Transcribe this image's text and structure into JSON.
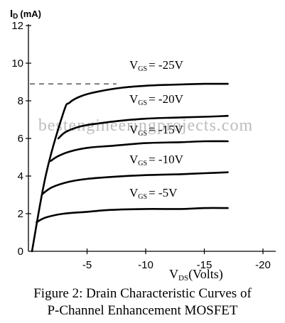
{
  "chart_data": {
    "type": "line",
    "ylabel": "I",
    "ylabel_sub": "D",
    "ylabel_unit": "(mA)",
    "xlabel": "V",
    "xlabel_sub": "DS",
    "xlabel_unit": "(Volts)",
    "xlim": [
      0,
      -20
    ],
    "ylim": [
      0,
      12
    ],
    "x_ticks": [
      -5,
      -10,
      -15,
      -20
    ],
    "x_tick_labels": [
      "-5",
      "-10",
      "-15",
      "-20"
    ],
    "y_ticks": [
      0,
      2,
      4,
      6,
      8,
      10,
      12
    ],
    "y_tick_labels": [
      "0",
      "2",
      "4",
      "6",
      "8",
      "10",
      "12"
    ],
    "grid": false,
    "reference_line": {
      "y": 8.9,
      "x_from": 0,
      "x_to": -7.5,
      "style": "dashed"
    },
    "watermark": "bestengineeringprojects.com",
    "series": [
      {
        "name": "V",
        "name_sub": "GS",
        "name_rest": "= -25V",
        "x": [
          -0.3,
          -1.5,
          -3.0,
          -3.5,
          -4.5,
          -6,
          -8,
          -10,
          -12,
          -15,
          -17
        ],
        "y": [
          0,
          4.1,
          7.4,
          7.9,
          8.25,
          8.5,
          8.7,
          8.8,
          8.85,
          8.9,
          8.9
        ]
      },
      {
        "name": "V",
        "name_sub": "GS",
        "name_rest": "= -20V",
        "x": [
          -2.55,
          -3.2,
          -4.5,
          -6,
          -8,
          -10,
          -12,
          -15,
          -17
        ],
        "y": [
          6.0,
          6.35,
          6.65,
          6.8,
          6.95,
          7.05,
          7.1,
          7.15,
          7.2
        ]
      },
      {
        "name": "V",
        "name_sub": "GS",
        "name_rest": "= -15V",
        "x": [
          -1.9,
          -2.5,
          -3.5,
          -5,
          -7,
          -10,
          -13,
          -15,
          -17
        ],
        "y": [
          4.8,
          5.05,
          5.3,
          5.5,
          5.6,
          5.75,
          5.8,
          5.85,
          5.85
        ]
      },
      {
        "name": "V",
        "name_sub": "GS",
        "name_rest": "= -10V",
        "x": [
          -1.2,
          -2,
          -3.5,
          -5,
          -7,
          -10,
          -13,
          -15,
          -17
        ],
        "y": [
          3.05,
          3.4,
          3.7,
          3.85,
          3.95,
          4.05,
          4.1,
          4.15,
          4.2
        ]
      },
      {
        "name": "V",
        "name_sub": "GS",
        "name_rest": "= -5V",
        "x": [
          -0.7,
          -1.5,
          -3,
          -5,
          -7,
          -10,
          -13,
          -15,
          -17
        ],
        "y": [
          1.55,
          1.8,
          2.0,
          2.1,
          2.2,
          2.25,
          2.25,
          2.3,
          2.3
        ]
      }
    ]
  },
  "caption": {
    "line1": "Figure 2: Drain Characteristic Curves of",
    "line2": "P-Channel Enhancement MOSFET"
  }
}
